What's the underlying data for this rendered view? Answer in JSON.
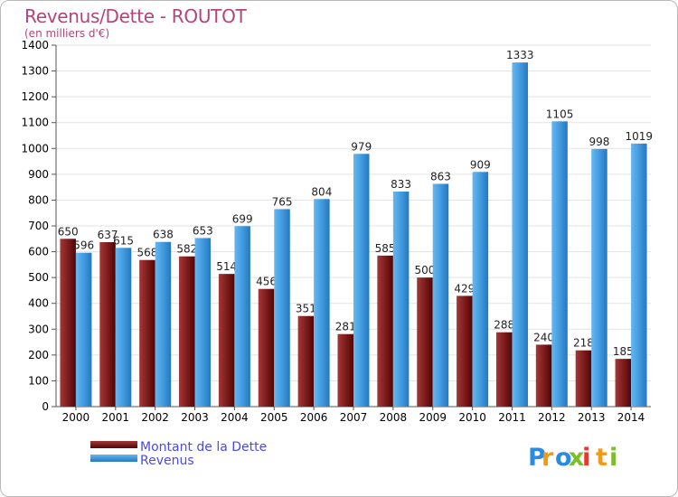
{
  "chart_data": {
    "type": "bar",
    "title": "Revenus/Dette - ROUTOT",
    "subtitle": "(en milliers d'€)",
    "categories": [
      "2000",
      "2001",
      "2002",
      "2003",
      "2004",
      "2005",
      "2006",
      "2007",
      "2008",
      "2009",
      "2010",
      "2011",
      "2012",
      "2013",
      "2014"
    ],
    "series": [
      {
        "name": "Montant de la Dette",
        "color": "#7d1a1a",
        "values": [
          650,
          637,
          568,
          582,
          514,
          456,
          351,
          281,
          585,
          500,
          429,
          288,
          240,
          218,
          185
        ]
      },
      {
        "name": "Revenus",
        "color": "#3f97dc",
        "values": [
          596,
          615,
          638,
          653,
          699,
          765,
          804,
          979,
          833,
          863,
          909,
          1333,
          1105,
          998,
          1019
        ]
      }
    ],
    "ylim": [
      0,
      1400
    ],
    "yticks": [
      0,
      100,
      200,
      300,
      400,
      500,
      600,
      700,
      800,
      900,
      1000,
      1100,
      1200,
      1300,
      1400
    ],
    "grid": true,
    "legend_position": "bottom-left"
  },
  "logo": {
    "letters": [
      "P",
      "r",
      "o",
      "x",
      "i",
      "t",
      "i"
    ],
    "colors": [
      "#2a8be3",
      "#f29a16",
      "#2a8be3",
      "#7cbd2b",
      "#e8372c",
      "#f29a16",
      "#7cbd2b"
    ]
  }
}
